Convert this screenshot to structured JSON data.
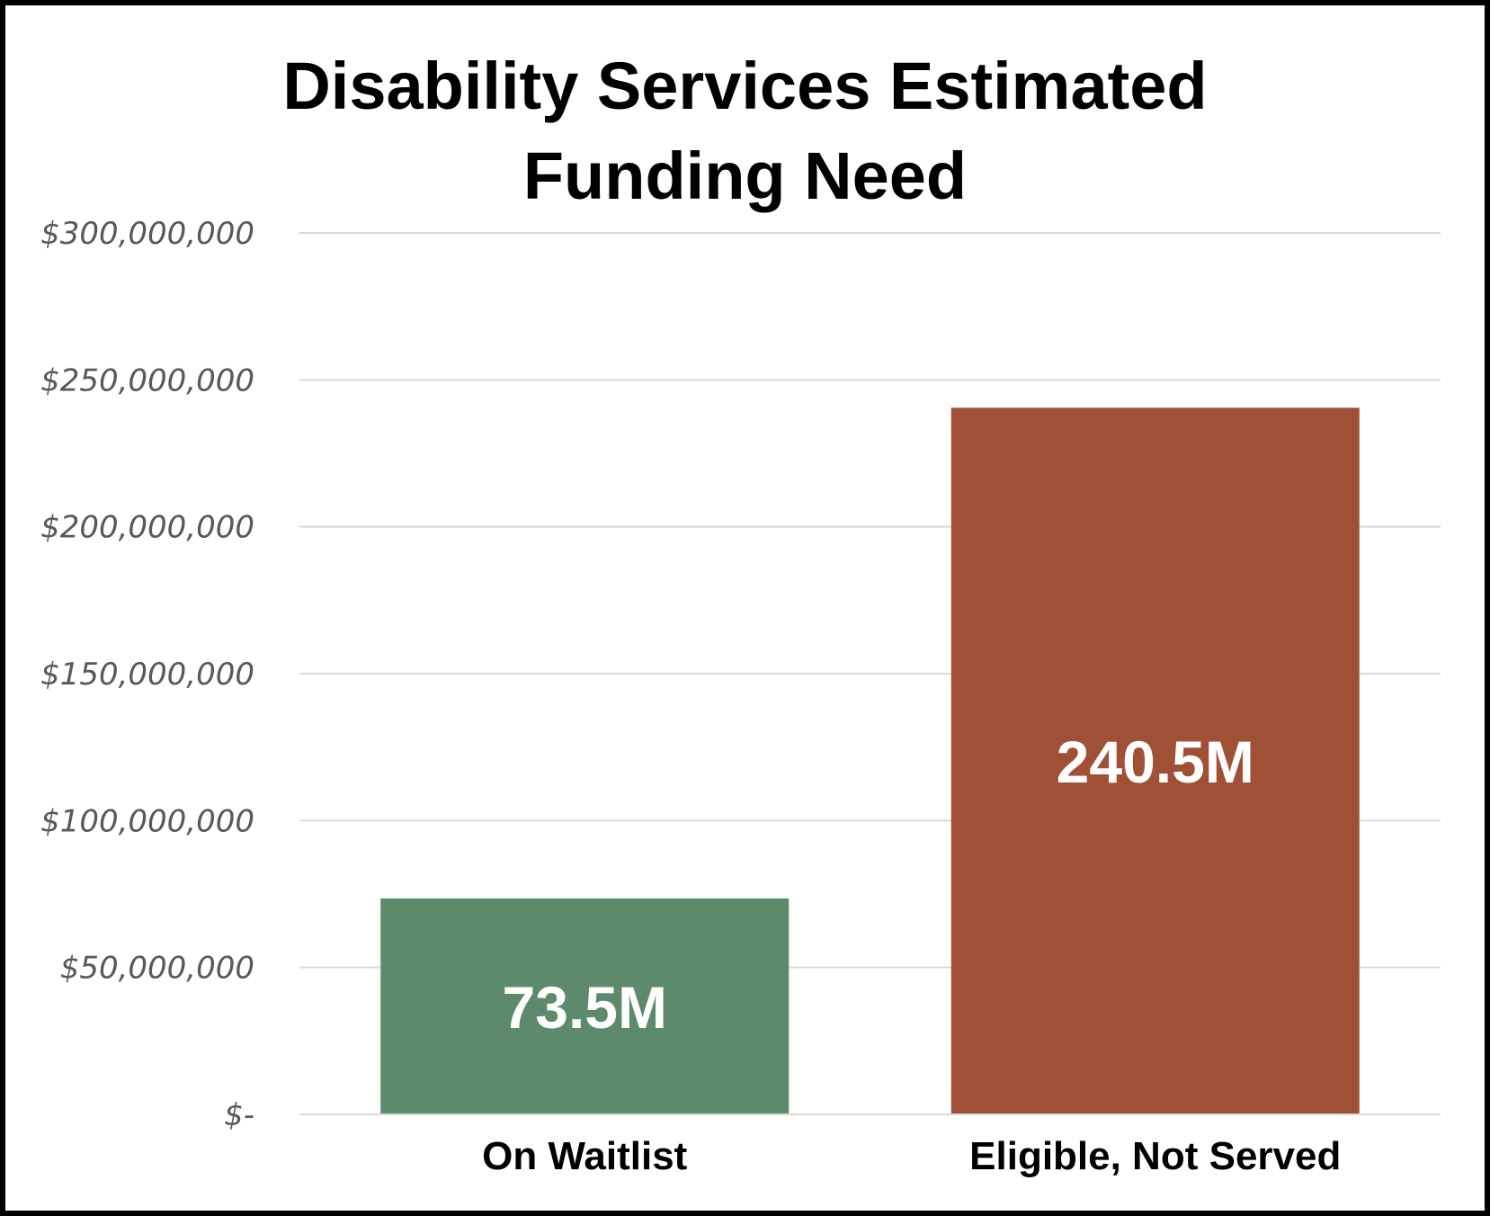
{
  "chart_data": {
    "type": "bar",
    "title_lines": [
      "Disability Services Estimated",
      "Funding Need"
    ],
    "categories": [
      "On Waitlist",
      "Eligible, Not Served"
    ],
    "values": [
      73500000,
      240500000
    ],
    "data_labels": [
      "73.5M",
      "240.5M"
    ],
    "colors": [
      "#5c8a6a",
      "#a05035"
    ],
    "ylim": [
      0,
      300000000
    ],
    "yticks": [
      0,
      50000000,
      100000000,
      150000000,
      200000000,
      250000000,
      300000000
    ],
    "ytick_labels": [
      "$-",
      "$50,000,000",
      "$100,000,000",
      "$150,000,000",
      "$200,000,000",
      "$250,000,000",
      "$300,000,000"
    ],
    "grid": true,
    "legend": "none"
  }
}
